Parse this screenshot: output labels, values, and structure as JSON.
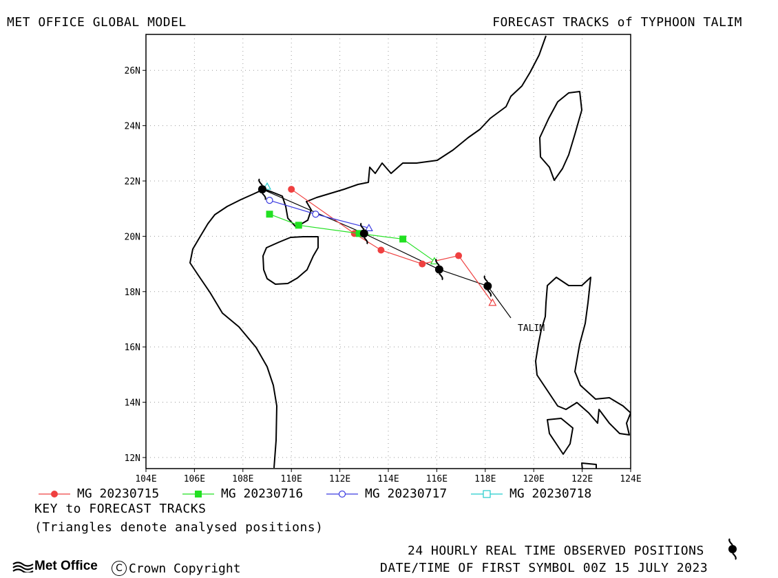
{
  "header": {
    "left_title": "MET OFFICE GLOBAL MODEL",
    "right_title": "FORECAST TRACKS of TYPHOON TALIM"
  },
  "map": {
    "lon_range": [
      104,
      124
    ],
    "lat_range": [
      11.6,
      27.3
    ],
    "lon_ticks": [
      "104E",
      "106E",
      "108E",
      "110E",
      "112E",
      "114E",
      "116E",
      "118E",
      "120E",
      "122E",
      "124E"
    ],
    "lat_ticks": [
      "12N",
      "14N",
      "16N",
      "18N",
      "20N",
      "22N",
      "24N",
      "26N"
    ],
    "storm_label": "TALIM",
    "observed_track": [
      {
        "lon": 118.1,
        "lat": 18.2
      },
      {
        "lon": 116.1,
        "lat": 18.8
      },
      {
        "lon": 113.0,
        "lat": 20.1
      },
      {
        "lon": 108.8,
        "lat": 21.7
      }
    ],
    "forecast_tracks": [
      {
        "name": "MG 20230715",
        "color": "#ef4040",
        "marker": "filled-circle",
        "points": [
          {
            "lon": 118.3,
            "lat": 17.6
          },
          {
            "lon": 116.9,
            "lat": 19.3
          },
          {
            "lon": 115.4,
            "lat": 19.0
          },
          {
            "lon": 113.7,
            "lat": 19.5
          },
          {
            "lon": 112.6,
            "lat": 20.1
          },
          {
            "lon": 110.0,
            "lat": 21.7
          }
        ]
      },
      {
        "name": "MG 20230716",
        "color": "#22e022",
        "marker": "filled-square",
        "points": [
          {
            "lon": 115.9,
            "lat": 19.1
          },
          {
            "lon": 114.6,
            "lat": 19.9
          },
          {
            "lon": 112.8,
            "lat": 20.1
          },
          {
            "lon": 110.3,
            "lat": 20.4
          },
          {
            "lon": 109.1,
            "lat": 20.8
          }
        ]
      },
      {
        "name": "MG 20230717",
        "color": "#3a3ae0",
        "marker": "open-circle",
        "points": [
          {
            "lon": 113.2,
            "lat": 20.3
          },
          {
            "lon": 111.0,
            "lat": 20.8
          },
          {
            "lon": 109.1,
            "lat": 21.3
          }
        ]
      },
      {
        "name": "MG 20230718",
        "color": "#22cccc",
        "marker": "open-square",
        "points": [
          {
            "lon": 109.0,
            "lat": 21.8
          }
        ]
      }
    ]
  },
  "legend": {
    "items": [
      {
        "label": "MG 20230715",
        "color": "#ef4040",
        "marker": "filled-circle"
      },
      {
        "label": "MG 20230716",
        "color": "#22e022",
        "marker": "filled-square"
      },
      {
        "label": "MG 20230717",
        "color": "#3a3ae0",
        "marker": "open-circle"
      },
      {
        "label": "MG 20230718",
        "color": "#22cccc",
        "marker": "open-square"
      }
    ],
    "key_title": "KEY to FORECAST TRACKS",
    "key_note": "(Triangles denote analysed positions)"
  },
  "footer": {
    "realtime_label": "24 HOURLY REAL TIME OBSERVED POSITIONS",
    "datetime_label": "DATE/TIME OF FIRST SYMBOL 00Z 15 JULY 2023",
    "logo_text": "Met Office",
    "copyright_symbol": "C",
    "copyright_text": "Crown Copyright"
  }
}
